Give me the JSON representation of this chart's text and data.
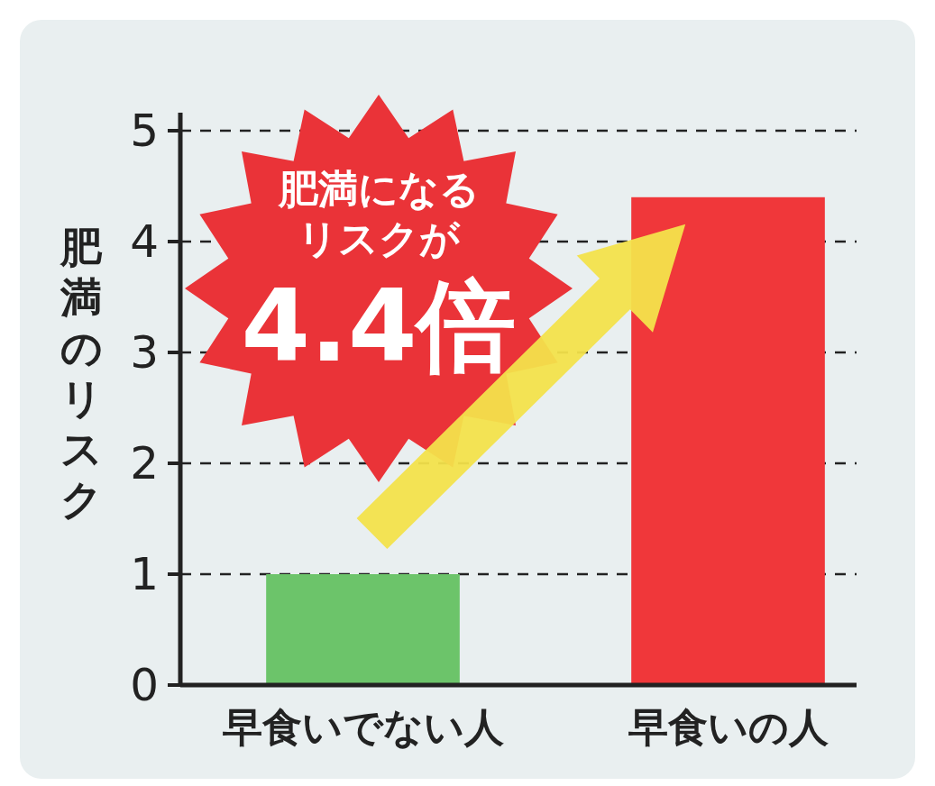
{
  "chart_data": {
    "type": "bar",
    "categories": [
      "早食いでない人",
      "早食いの人"
    ],
    "values": [
      1,
      4.4
    ],
    "colors": [
      "#6cc46a",
      "#f0373a"
    ],
    "ylabel": "肥満のリスク",
    "ylim": [
      0,
      5
    ],
    "yticks": [
      0,
      1,
      2,
      3,
      4,
      5
    ],
    "grid": "y",
    "annotations": [
      "肥満になる",
      "リスクが",
      "4.4倍"
    ]
  }
}
